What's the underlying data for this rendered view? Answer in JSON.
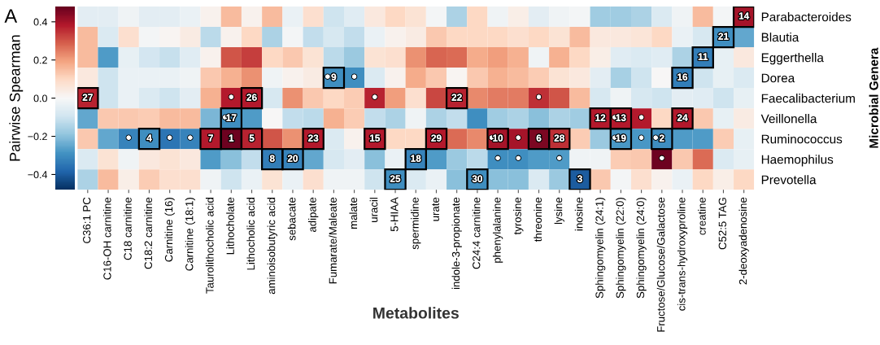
{
  "chart_data": {
    "type": "heatmap",
    "title": "A",
    "xlabel": "Metabolites",
    "ylabel": "Microbial Genera",
    "clabel": "Pairwise Spearman",
    "categories": [
      "C36:1 PC",
      "C16-OH carnitine",
      "C18 carnitine",
      "C18:2 carnitine",
      "Carnitine (16)",
      "Carnitine (18:1)",
      "Taurolithocholic acid",
      "Lithocholate",
      "Lithocholic acid",
      "aminoisobutyric acid",
      "sebacate",
      "adipate",
      "Fumarate/Maleate",
      "malate",
      "uracil",
      "5-HIAA",
      "spermidine",
      "urate",
      "indole-3-propionate",
      "C24:4 carnitine",
      "phenylalanine",
      "tyrosine",
      "threonine",
      "lysine",
      "inosine",
      "Sphingomyelin (24:1)",
      "Sphingomyelin (22:0)",
      "Sphingomyelin (24:0)",
      "Fructose/Glucose/Galactose",
      "cis-trans-hydroxyproline",
      "creatine",
      "C52:5 TAG",
      "2-deoxyadenosine"
    ],
    "y_categories": [
      "Parabacteroides",
      "Blautia",
      "Eggerthella",
      "Dorea",
      "Faecalibacterium",
      "Veillonella",
      "Ruminococcus",
      "Haemophilus",
      "Prevotella"
    ],
    "cells": [
      [
        -0.05,
        -0.05,
        -0.02,
        -0.05,
        -0.05,
        -0.03,
        0.02,
        0.15,
        0.02,
        0.15,
        -0.03,
        0.08,
        -0.1,
        -0.06,
        0.05,
        0.1,
        0.07,
        -0.01,
        -0.15,
        0.1,
        -0.02,
        0.03,
        -0.05,
        -0.02,
        -0.01,
        -0.17,
        -0.17,
        -0.15,
        -0.07,
        -0.02,
        0.15,
        -0.01,
        0.4
      ],
      [
        0.15,
        -0.07,
        0.08,
        -0.01,
        0.01,
        0.04,
        -0.13,
        0.02,
        0.1,
        -0.15,
        -0.01,
        -0.12,
        -0.08,
        -0.12,
        -0.03,
        0.02,
        0.04,
        0.13,
        0.1,
        0.1,
        0.1,
        0.08,
        0.1,
        0.07,
        0.15,
        0.05,
        0.05,
        0.06,
        0.1,
        -0.03,
        -0.08,
        -0.3,
        -0.25
      ],
      [
        0.15,
        -0.27,
        -0.04,
        -0.09,
        -0.11,
        -0.06,
        0.02,
        0.3,
        0.33,
        0.1,
        0.13,
        0.07,
        -0.13,
        -0.18,
        0.07,
        0.08,
        0.22,
        0.28,
        0.27,
        0.18,
        0.2,
        0.17,
        -0.02,
        0.17,
        0.1,
        0.03,
        -0.06,
        -0.07,
        -0.06,
        -0.15,
        -0.33,
        -0.04,
        0.05
      ],
      [
        0.05,
        -0.1,
        -0.03,
        -0.03,
        -0.03,
        -0.02,
        0.13,
        0.17,
        0.22,
        -0.02,
        0.02,
        0.04,
        -0.3,
        -0.3,
        -0.07,
        0.02,
        0.18,
        0.13,
        0.01,
        0.13,
        0.17,
        0.15,
        0.12,
        0.07,
        0.05,
        -0.05,
        -0.16,
        -0.1,
        0.0,
        -0.33,
        -0.1,
        -0.04,
        -0.07
      ],
      [
        0.37,
        -0.1,
        -0.03,
        -0.07,
        -0.1,
        -0.05,
        0.17,
        0.38,
        0.38,
        -0.08,
        0.22,
        0.13,
        0.1,
        0.12,
        0.37,
        0.2,
        0.08,
        0.32,
        0.37,
        0.23,
        0.25,
        0.25,
        0.35,
        0.3,
        0.15,
        -0.08,
        -0.02,
        -0.08,
        -0.1,
        -0.05,
        -0.06,
        -0.1,
        -0.04
      ],
      [
        -0.25,
        0.13,
        0.13,
        0.12,
        0.15,
        0.15,
        -0.22,
        -0.3,
        -0.27,
        0.0,
        -0.12,
        -0.13,
        0.17,
        0.12,
        -0.12,
        -0.15,
        -0.02,
        -0.15,
        -0.12,
        -0.3,
        -0.17,
        -0.15,
        -0.2,
        -0.15,
        -0.17,
        0.38,
        0.38,
        0.38,
        0.1,
        0.38,
        0.13,
        -0.04,
        0.04
      ],
      [
        0.13,
        -0.25,
        -0.32,
        -0.3,
        -0.35,
        -0.32,
        0.38,
        0.47,
        0.37,
        0.3,
        0.22,
        0.38,
        -0.07,
        0.02,
        0.38,
        0.1,
        0.1,
        0.38,
        0.27,
        0.23,
        0.4,
        0.4,
        0.45,
        0.35,
        0.12,
        -0.18,
        -0.28,
        -0.28,
        -0.3,
        -0.27,
        -0.27,
        0.12,
        -0.04
      ],
      [
        -0.07,
        0.07,
        -0.02,
        0.05,
        0.07,
        0.05,
        -0.27,
        -0.2,
        -0.12,
        -0.33,
        -0.32,
        -0.25,
        -0.08,
        -0.05,
        -0.2,
        -0.03,
        -0.32,
        -0.27,
        -0.18,
        -0.13,
        -0.3,
        -0.3,
        -0.27,
        -0.27,
        -0.02,
        -0.02,
        0.12,
        0.13,
        0.47,
        0.13,
        0.27,
        -0.07,
        -0.04
      ],
      [
        -0.15,
        0.15,
        0.03,
        0.12,
        0.08,
        0.08,
        -0.02,
        -0.1,
        -0.03,
        0.07,
        -0.03,
        0.08,
        -0.02,
        -0.02,
        -0.1,
        -0.3,
        -0.07,
        -0.03,
        -0.2,
        -0.3,
        -0.2,
        -0.2,
        -0.07,
        -0.18,
        -0.4,
        0.13,
        -0.01,
        0.08,
        0.02,
        -0.03,
        0.1,
        0.03,
        0.1
      ]
    ],
    "clim": [
      -0.48,
      0.48
    ],
    "cticks": [
      {
        "value": -0.4,
        "label": "−0.4"
      },
      {
        "value": -0.2,
        "label": "−0.2"
      },
      {
        "value": 0,
        "label": "0.0"
      },
      {
        "value": 0.2,
        "label": "0.2"
      },
      {
        "value": 0.4,
        "label": "0.4"
      }
    ],
    "annotations": [
      {
        "text": "1",
        "x": "Lithocholate",
        "y": "Ruminococcus"
      },
      {
        "text": "2",
        "x": "Fructose/Glucose/Galactose",
        "y": "Ruminococcus"
      },
      {
        "text": "3",
        "x": "inosine",
        "y": "Prevotella"
      },
      {
        "text": "4",
        "x": "C18:2 carnitine",
        "y": "Ruminococcus"
      },
      {
        "text": "5",
        "x": "Lithocholic acid",
        "y": "Ruminococcus"
      },
      {
        "text": "6",
        "x": "threonine",
        "y": "Ruminococcus"
      },
      {
        "text": "7",
        "x": "Taurolithocholic acid",
        "y": "Ruminococcus"
      },
      {
        "text": "8",
        "x": "aminoisobutyric acid",
        "y": "Haemophilus"
      },
      {
        "text": "9",
        "x": "Fumarate/Maleate",
        "y": "Dorea"
      },
      {
        "text": "10",
        "x": "phenylalanine",
        "y": "Ruminococcus"
      },
      {
        "text": "11",
        "x": "creatine",
        "y": "Eggerthella"
      },
      {
        "text": "12",
        "x": "Sphingomyelin (24:1)",
        "y": "Veillonella"
      },
      {
        "text": "13",
        "x": "Sphingomyelin (22:0)",
        "y": "Veillonella"
      },
      {
        "text": "14",
        "x": "2-deoxyadenosine",
        "y": "Parabacteroides"
      },
      {
        "text": "15",
        "x": "uracil",
        "y": "Ruminococcus"
      },
      {
        "text": "16",
        "x": "cis-trans-hydroxyproline",
        "y": "Dorea"
      },
      {
        "text": "17",
        "x": "Lithocholate",
        "y": "Veillonella"
      },
      {
        "text": "18",
        "x": "spermidine",
        "y": "Haemophilus"
      },
      {
        "text": "19",
        "x": "Sphingomyelin (22:0)",
        "y": "Ruminococcus"
      },
      {
        "text": "20",
        "x": "sebacate",
        "y": "Haemophilus"
      },
      {
        "text": "21",
        "x": "C52:5 TAG",
        "y": "Blautia"
      },
      {
        "text": "22",
        "x": "indole-3-propionate",
        "y": "Faecalibacterium"
      },
      {
        "text": "23",
        "x": "adipate",
        "y": "Ruminococcus"
      },
      {
        "text": "24",
        "x": "cis-trans-hydroxyproline",
        "y": "Veillonella"
      },
      {
        "text": "25",
        "x": "5-HIAA",
        "y": "Prevotella"
      },
      {
        "text": "26",
        "x": "Lithocholic acid",
        "y": "Faecalibacterium"
      },
      {
        "text": "27",
        "x": "C36:1 PC",
        "y": "Faecalibacterium"
      },
      {
        "text": "28",
        "x": "lysine",
        "y": "Ruminococcus"
      },
      {
        "text": "29",
        "x": "urate",
        "y": "Ruminococcus"
      },
      {
        "text": "30",
        "x": "C24:4 carnitine",
        "y": "Prevotella"
      }
    ],
    "cell_labels": [
      [
        null,
        null,
        null,
        null,
        null,
        null,
        null,
        null,
        null,
        null,
        null,
        null,
        null,
        null,
        null,
        null,
        null,
        null,
        null,
        null,
        null,
        null,
        null,
        null,
        null,
        null,
        null,
        null,
        null,
        null,
        null,
        null,
        null
      ],
      [
        null,
        null,
        null,
        null,
        null,
        null,
        null,
        null,
        null,
        null,
        null,
        null,
        null,
        null,
        null,
        null,
        null,
        null,
        null,
        null,
        null,
        null,
        null,
        null,
        null,
        null,
        null,
        null,
        null,
        null,
        null,
        null,
        null
      ],
      [
        null,
        null,
        null,
        null,
        null,
        null,
        null,
        null,
        null,
        null,
        null,
        null,
        null,
        null,
        null,
        null,
        null,
        null,
        null,
        null,
        null,
        null,
        null,
        null,
        null,
        null,
        null,
        null,
        null,
        null,
        null,
        null,
        null
      ],
      [
        null,
        null,
        null,
        null,
        null,
        null,
        null,
        null,
        null,
        null,
        null,
        null,
        "•",
        "•",
        null,
        null,
        null,
        null,
        null,
        null,
        null,
        null,
        null,
        null,
        null,
        null,
        null,
        null,
        null,
        null,
        null,
        null,
        null
      ],
      [
        null,
        null,
        null,
        null,
        null,
        null,
        null,
        "•",
        null,
        null,
        null,
        null,
        null,
        null,
        "•",
        null,
        null,
        null,
        null,
        null,
        null,
        null,
        "•",
        null,
        null,
        null,
        null,
        null,
        null,
        null,
        null,
        null,
        null
      ],
      [
        null,
        null,
        null,
        null,
        null,
        null,
        null,
        "•",
        null,
        null,
        null,
        null,
        null,
        null,
        null,
        null,
        null,
        null,
        null,
        null,
        null,
        null,
        null,
        null,
        null,
        null,
        "•",
        "•",
        null,
        null,
        null,
        null,
        null
      ],
      [
        null,
        null,
        "•",
        null,
        "•",
        "•",
        null,
        null,
        null,
        null,
        null,
        null,
        null,
        null,
        null,
        null,
        null,
        null,
        null,
        null,
        "•",
        "•",
        null,
        null,
        null,
        null,
        "•",
        "•",
        "•",
        null,
        null,
        null,
        null
      ],
      [
        null,
        null,
        null,
        null,
        null,
        null,
        null,
        null,
        null,
        null,
        null,
        null,
        null,
        null,
        null,
        null,
        null,
        null,
        null,
        null,
        "•",
        "•",
        null,
        "•",
        null,
        null,
        null,
        null,
        "•",
        null,
        null,
        null,
        null
      ],
      [
        null,
        null,
        null,
        null,
        null,
        null,
        null,
        null,
        null,
        null,
        null,
        null,
        null,
        null,
        null,
        null,
        null,
        null,
        null,
        null,
        null,
        null,
        null,
        null,
        null,
        null,
        null,
        null,
        null,
        null,
        null,
        null,
        null
      ]
    ]
  }
}
